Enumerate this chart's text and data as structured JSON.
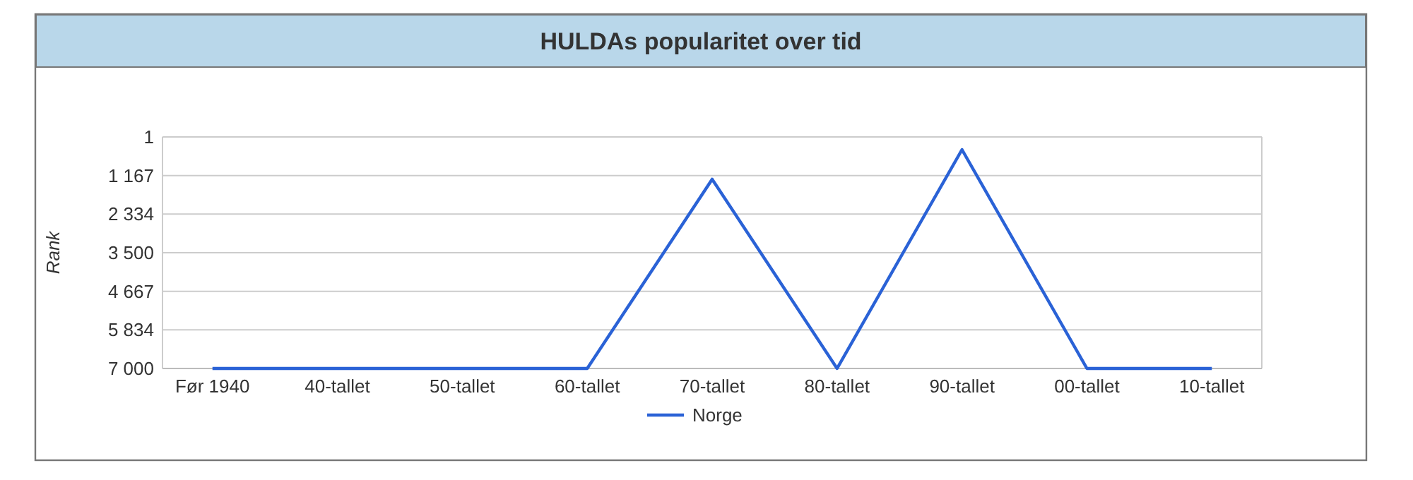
{
  "chart_data": {
    "type": "line",
    "title": "HULDAs popularitet over tid",
    "ylabel": "Rank",
    "categories": [
      "Før 1940",
      "40-tallet",
      "50-tallet",
      "60-tallet",
      "70-tallet",
      "80-tallet",
      "90-tallet",
      "00-tallet",
      "10-tallet"
    ],
    "series": [
      {
        "name": "Norge",
        "color": "#2a62d6",
        "values": [
          7000,
          7000,
          7000,
          7000,
          1280,
          7000,
          385,
          7000,
          7000
        ]
      }
    ],
    "ylim": [
      7000,
      1
    ],
    "yticks": [
      1,
      {
        "value": 1167,
        "label": "1 167"
      },
      {
        "value": 2334,
        "label": "2 334"
      },
      {
        "value": 3500,
        "label": "3 500"
      },
      {
        "value": 4667,
        "label": "4 667"
      },
      {
        "value": 5834,
        "label": "5 834"
      },
      {
        "value": 7000,
        "label": "7 000"
      }
    ],
    "grid": "y",
    "legend": "bottom",
    "marker": "none",
    "line_style": "solid"
  }
}
